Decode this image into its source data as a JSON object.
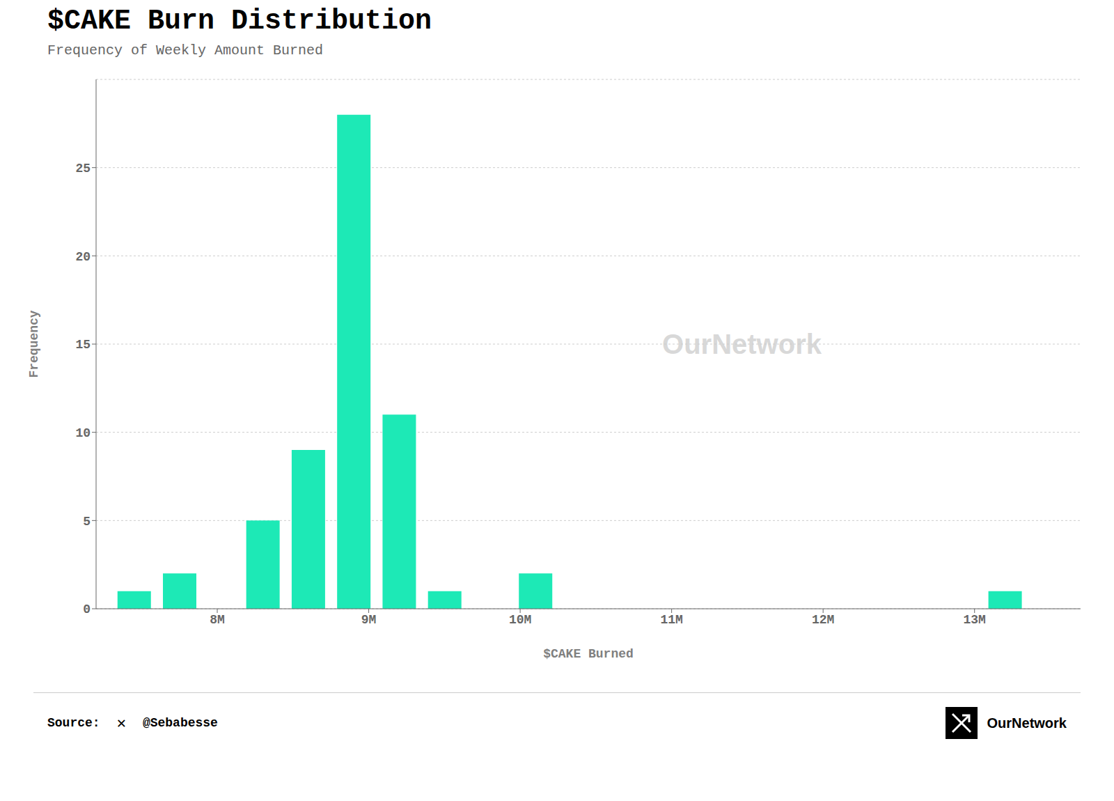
{
  "chart_data": {
    "type": "bar",
    "title": "$CAKE Burn Distribution",
    "subtitle": "Frequency of Weekly Amount Burned",
    "xlabel": "$CAKE Burned",
    "ylabel": "Frequency",
    "x": [
      7450000,
      7750000,
      8300000,
      8600000,
      8900000,
      9200000,
      9500000,
      10100000,
      13200000
    ],
    "values": [
      1,
      2,
      5,
      9,
      28,
      11,
      1,
      2,
      1
    ],
    "color": "#1de9b6",
    "xlim": [
      7200000,
      13700000
    ],
    "xticks": [
      {
        "value": 8000000,
        "label": "8M"
      },
      {
        "value": 9000000,
        "label": "9M"
      },
      {
        "value": 10000000,
        "label": "10M"
      },
      {
        "value": 11000000,
        "label": "11M"
      },
      {
        "value": 12000000,
        "label": "12M"
      },
      {
        "value": 13000000,
        "label": "13M"
      }
    ],
    "ylim": [
      0,
      30
    ],
    "yticks": [
      0,
      5,
      10,
      15,
      20,
      25
    ],
    "grid": true,
    "annotations": [
      "OurNetwork",
      "Source:",
      "✕",
      "@Sebabesse",
      "OurNetwork"
    ]
  }
}
